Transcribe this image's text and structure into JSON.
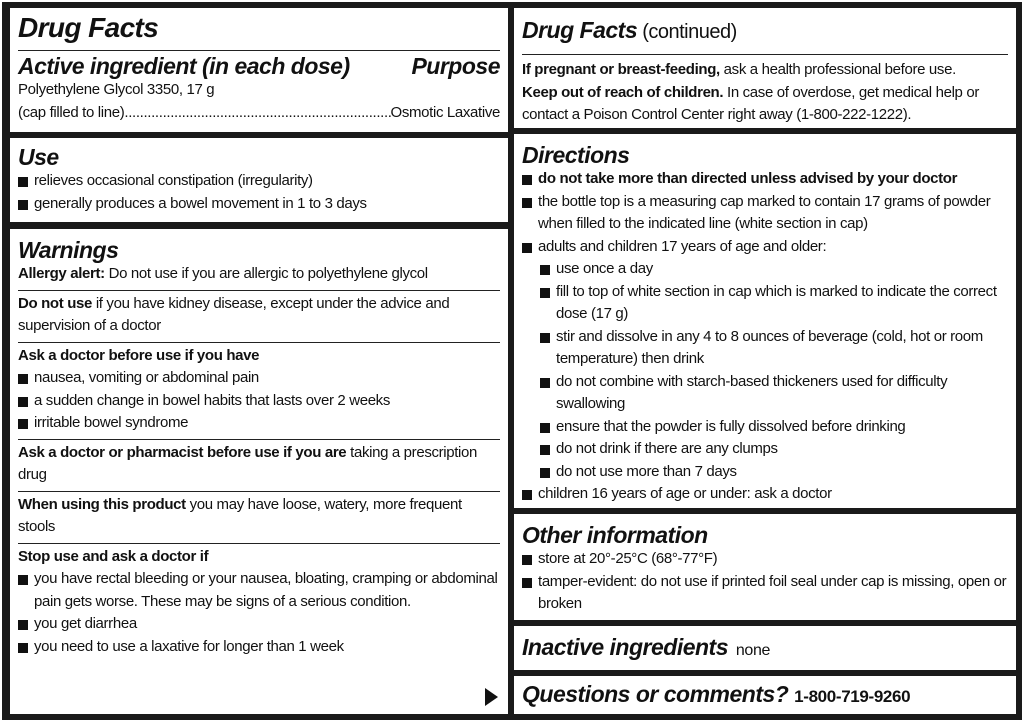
{
  "left": {
    "title": "Drug Facts",
    "active": {
      "heading": "Active ingredient (in each dose)",
      "purpose_heading": "Purpose",
      "line1": "Polyethylene Glycol 3350, 17 g",
      "line2": "(cap filled to line)",
      "dots": "..................................................................................",
      "purpose": "Osmotic Laxative"
    },
    "use": {
      "heading": "Use",
      "items": [
        "relieves occasional constipation (irregularity)",
        "generally produces a bowel movement in 1 to 3 days"
      ]
    },
    "warnings": {
      "heading": "Warnings",
      "allergy": {
        "bold": "Allergy alert:",
        "text": " Do not use if you are allergic to polyethylene glycol"
      },
      "do_not_use": {
        "bold": "Do not use",
        "text": " if you have kidney disease, except under the advice and supervision of a doctor"
      },
      "ask_doctor": {
        "bold": "Ask a doctor before use if you have",
        "items": [
          "nausea, vomiting or abdominal pain",
          "a sudden change in bowel habits that lasts over 2 weeks",
          "irritable bowel syndrome"
        ]
      },
      "ask_pharmacist": {
        "bold": "Ask a doctor or pharmacist before use if you are",
        "text": " taking a prescription drug"
      },
      "when_using": {
        "bold": "When using this product",
        "text": " you may have loose, watery, more frequent stools"
      },
      "stop_use": {
        "bold": "Stop use and ask a doctor if",
        "items": [
          "you have rectal bleeding or your nausea, bloating, cramping or abdominal pain gets worse. These may be signs of a serious condition.",
          "you get diarrhea",
          "you need to use a laxative for longer than 1 week"
        ]
      }
    }
  },
  "right": {
    "title": "Drug Facts",
    "title_suffix": " (continued)",
    "pregnant": {
      "bold": "If pregnant or breast-feeding,",
      "text": " ask a health professional before use."
    },
    "children": {
      "bold": "Keep out of reach of children.",
      "text": " In case of overdose, get medical help or contact a Poison Control Center right away (1-800-222-1222)."
    },
    "directions": {
      "heading": "Directions",
      "first": "do not take more than directed unless advised by your doctor",
      "cap": "the bottle top is a measuring cap marked to contain 17 grams of powder when filled to the indicated line (white section in cap)",
      "adults": "adults and children 17 years of age and older:",
      "adult_items": [
        "use once a day",
        "fill to top of white section in cap which is marked to indicate the correct dose (17 g)",
        "stir and dissolve in any 4 to 8 ounces of beverage (cold, hot or room temperature) then drink",
        "do not combine with starch-based thickeners used for difficulty swallowing",
        "ensure that the powder is fully dissolved before drinking",
        "do not drink if there are any clumps",
        "do not use more than 7 days"
      ],
      "children": "children 16 years of age or under: ask a doctor"
    },
    "other": {
      "heading": "Other information",
      "items": [
        "store at 20°-25°C (68°-77°F)",
        "tamper-evident: do not use if printed foil seal under cap is missing, open or broken"
      ]
    },
    "inactive": {
      "heading": "Inactive ingredients",
      "text": "none"
    },
    "questions": {
      "heading": "Questions or comments?",
      "phone": "1-800-719-9260"
    }
  },
  "icons": {
    "bullet": "black-square",
    "continue": "right-triangle-arrow"
  }
}
